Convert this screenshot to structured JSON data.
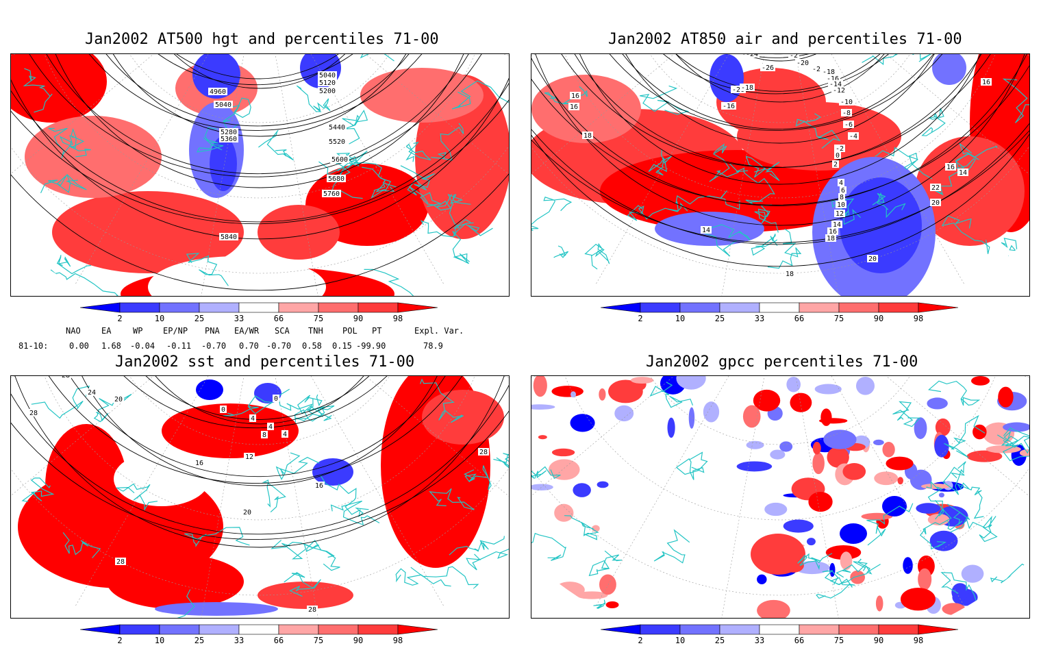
{
  "panels": [
    {
      "title": "Jan2002 AT500 hgt and percentiles 71-00",
      "contour_labels": [
        "4960",
        "5040",
        "5040",
        "5120",
        "5200",
        "5280",
        "5360",
        "5440",
        "5520",
        "5600",
        "5680",
        "5760",
        "5840"
      ]
    },
    {
      "title": "Jan2002 AT850 air and percentiles 71-00",
      "contour_labels": [
        "-24",
        "-26",
        "-26",
        "-16",
        "-18",
        "-20",
        "-2",
        "-2",
        "-18",
        "-16",
        "-14",
        "-12",
        "-10",
        "-8",
        "-6",
        "-4",
        "-2",
        "0",
        "2",
        "4",
        "6",
        "8",
        "10",
        "12",
        "14",
        "14",
        "16",
        "16",
        "18",
        "18",
        "18",
        "20",
        "20",
        "22",
        "16",
        "14",
        "16",
        "16"
      ]
    },
    {
      "title": "Jan2002 sst and percentiles 71-00",
      "contour_labels": [
        "28",
        "24",
        "20",
        "28",
        "0",
        "0",
        "4",
        "4",
        "8",
        "4",
        "12",
        "16",
        "16",
        "20",
        "28",
        "28",
        "28"
      ]
    },
    {
      "title": "Jan2002 gpcc percentiles 71-00",
      "contour_labels": []
    }
  ],
  "colorbar": {
    "labels": [
      "2",
      "10",
      "25",
      "33",
      "66",
      "75",
      "90",
      "98"
    ],
    "colors": [
      "#0000ff",
      "#3b3bff",
      "#7272ff",
      "#b0b0ff",
      "#ffffff",
      "#ffa6a6",
      "#ff6e6e",
      "#ff3c3c",
      "#ff0000"
    ]
  },
  "teleconnections": {
    "headers": [
      "NAO",
      "EA",
      "WP",
      "EP/NP",
      "PNA",
      "EA/WR",
      "SCA",
      "TNH",
      "POL",
      "PT",
      "Expl. Var."
    ],
    "row_label": "81-10:",
    "values": [
      "0.00",
      "1.68",
      "-0.04",
      "-0.11",
      "-0.70",
      "0.70",
      "-0.70",
      "0.58",
      "0.15",
      "-99.90",
      "78.9"
    ]
  },
  "map_colors": {
    "land_outline": "#22c4c4",
    "contour": "#000000",
    "grid": "#999999"
  }
}
